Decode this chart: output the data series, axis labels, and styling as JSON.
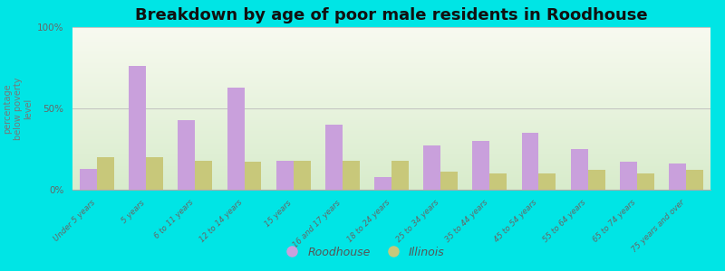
{
  "title": "Breakdown by age of poor male residents in Roodhouse",
  "ylabel": "percentage\nbelow poverty\nlevel",
  "categories": [
    "Under 5 years",
    "5 years",
    "6 to 11 years",
    "12 to 14 years",
    "15 years",
    "16 and 17 years",
    "18 to 24 years",
    "25 to 34 years",
    "35 to 44 years",
    "45 to 54 years",
    "55 to 64 years",
    "65 to 74 years",
    "75 years and over"
  ],
  "roodhouse_values": [
    13,
    76,
    43,
    63,
    18,
    40,
    8,
    27,
    30,
    35,
    25,
    17,
    16
  ],
  "illinois_values": [
    20,
    20,
    18,
    17,
    18,
    18,
    18,
    11,
    10,
    10,
    12,
    10,
    12
  ],
  "roodhouse_color": "#c9a0dc",
  "illinois_color": "#c8c87a",
  "outer_bg_color": "#00e5e5",
  "ylim": [
    0,
    100
  ],
  "yticks": [
    0,
    50,
    100
  ],
  "ytick_labels": [
    "0%",
    "50%",
    "100%"
  ],
  "bar_width": 0.35,
  "title_fontsize": 13,
  "label_color": "#666666",
  "legend_labels": [
    "Roodhouse",
    "Illinois"
  ]
}
